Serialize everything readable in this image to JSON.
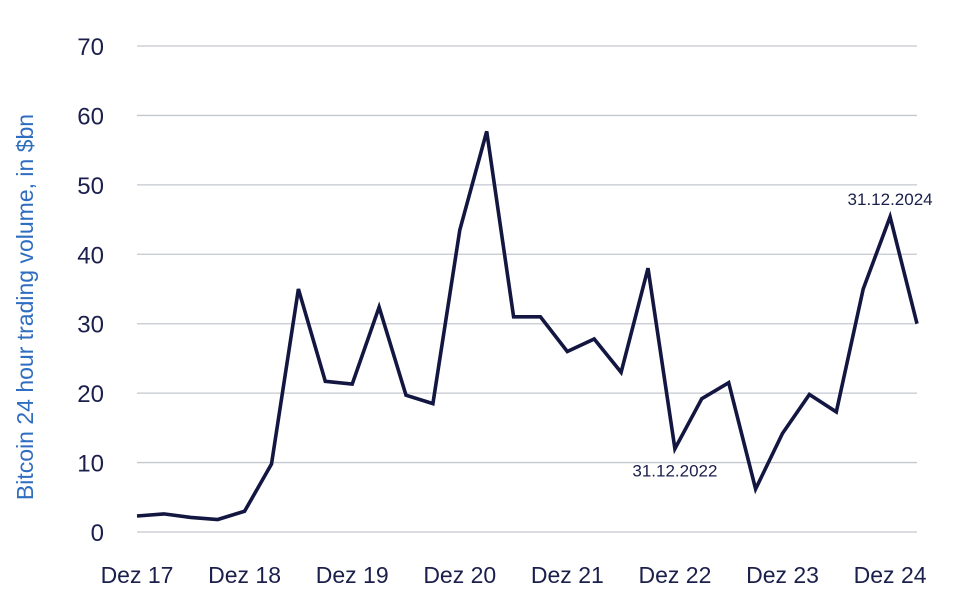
{
  "chart_data": {
    "type": "line",
    "ylabel": "Bitcoin 24 hour trading volume, in $bn",
    "xlabel": "",
    "ylim": [
      0,
      70
    ],
    "yticks": [
      "0",
      "10",
      "20",
      "30",
      "40",
      "50",
      "60",
      "70"
    ],
    "xtick_labels": [
      "Dez 17",
      "Dez 18",
      "Dez 19",
      "Dez 20",
      "Dez 21",
      "Dez 22",
      "Dez 23",
      "Dez 24"
    ],
    "grid": true,
    "series": [
      {
        "color": "#131640",
        "x": [
          0,
          0.25,
          0.5,
          0.75,
          1,
          1.25,
          1.5,
          1.75,
          2,
          2.25,
          2.5,
          2.75,
          3,
          3.25,
          3.5,
          3.75,
          4,
          4.25,
          4.5,
          4.75,
          5,
          5.25,
          5.5,
          5.75,
          6,
          6.25,
          6.5,
          6.75,
          7,
          7.25
        ],
        "values": [
          2.3,
          2.6,
          2.1,
          1.8,
          3.0,
          9.8,
          35.0,
          21.7,
          21.3,
          32.4,
          19.7,
          18.5,
          43.5,
          57.7,
          31.0,
          31.0,
          26.0,
          27.8,
          23.0,
          38.0,
          12.0,
          19.2,
          21.5,
          6.2,
          14.2,
          19.8,
          17.3,
          35.0,
          45.4,
          30.0
        ]
      }
    ],
    "annotations": [
      {
        "text": "31.12.2022",
        "x": 5.0,
        "y": 12.0,
        "position": "below"
      },
      {
        "text": "31.12.2024",
        "x": 7.0,
        "y": 45.4,
        "position": "above"
      }
    ]
  }
}
